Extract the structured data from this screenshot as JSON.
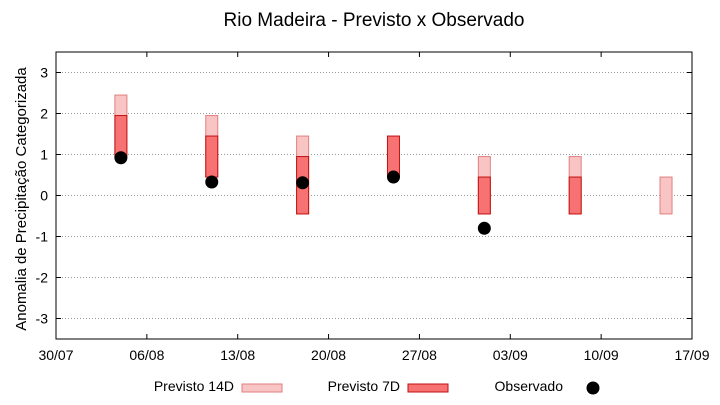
{
  "chart_data": {
    "type": "bar",
    "title": "Rio Madeira - Previsto x Observado",
    "ylabel": "Anomalia de Precipitação Categorizada",
    "xlabel": "",
    "ylim": [
      -3.5,
      3.5
    ],
    "yticks": [
      -3,
      -2,
      -1,
      0,
      1,
      2,
      3
    ],
    "xlim": [
      "2020-07-30",
      "2020-09-17"
    ],
    "xticks": [
      "30/07",
      "06/08",
      "13/08",
      "20/08",
      "27/08",
      "03/09",
      "10/09",
      "17/09"
    ],
    "grid": "horizontal dotted",
    "legend": "bottom",
    "colors": {
      "p14": "#f9c4c4",
      "p14_edge": "#e08080",
      "p7": "#f77272",
      "p7_edge": "#c01010",
      "obs": "#000000"
    },
    "series": [
      {
        "name": "Previsto 14D",
        "kind": "range",
        "points": [
          {
            "date": "2020-08-04",
            "low": 1.0,
            "high": 2.45
          },
          {
            "date": "2020-08-11",
            "low": 0.45,
            "high": 1.95
          },
          {
            "date": "2020-08-18",
            "low": -0.45,
            "high": 1.45
          },
          {
            "date": "2020-09-01",
            "low": -0.45,
            "high": 0.95
          },
          {
            "date": "2020-09-08",
            "low": -0.45,
            "high": 0.95
          },
          {
            "date": "2020-09-15",
            "low": -0.45,
            "high": 0.45
          }
        ]
      },
      {
        "name": "Previsto 7D",
        "kind": "range",
        "points": [
          {
            "date": "2020-08-04",
            "low": 0.95,
            "high": 1.95
          },
          {
            "date": "2020-08-11",
            "low": 0.45,
            "high": 1.45
          },
          {
            "date": "2020-08-18",
            "low": -0.45,
            "high": 0.95
          },
          {
            "date": "2020-08-25",
            "low": 0.45,
            "high": 1.45
          },
          {
            "date": "2020-09-01",
            "low": -0.45,
            "high": 0.45
          },
          {
            "date": "2020-09-08",
            "low": -0.45,
            "high": 0.45
          }
        ]
      },
      {
        "name": "Observado",
        "kind": "point",
        "points": [
          {
            "date": "2020-08-04",
            "value": 0.92
          },
          {
            "date": "2020-08-11",
            "value": 0.33
          },
          {
            "date": "2020-08-18",
            "value": 0.31
          },
          {
            "date": "2020-08-25",
            "value": 0.45
          },
          {
            "date": "2020-09-01",
            "value": -0.8
          }
        ]
      }
    ]
  }
}
